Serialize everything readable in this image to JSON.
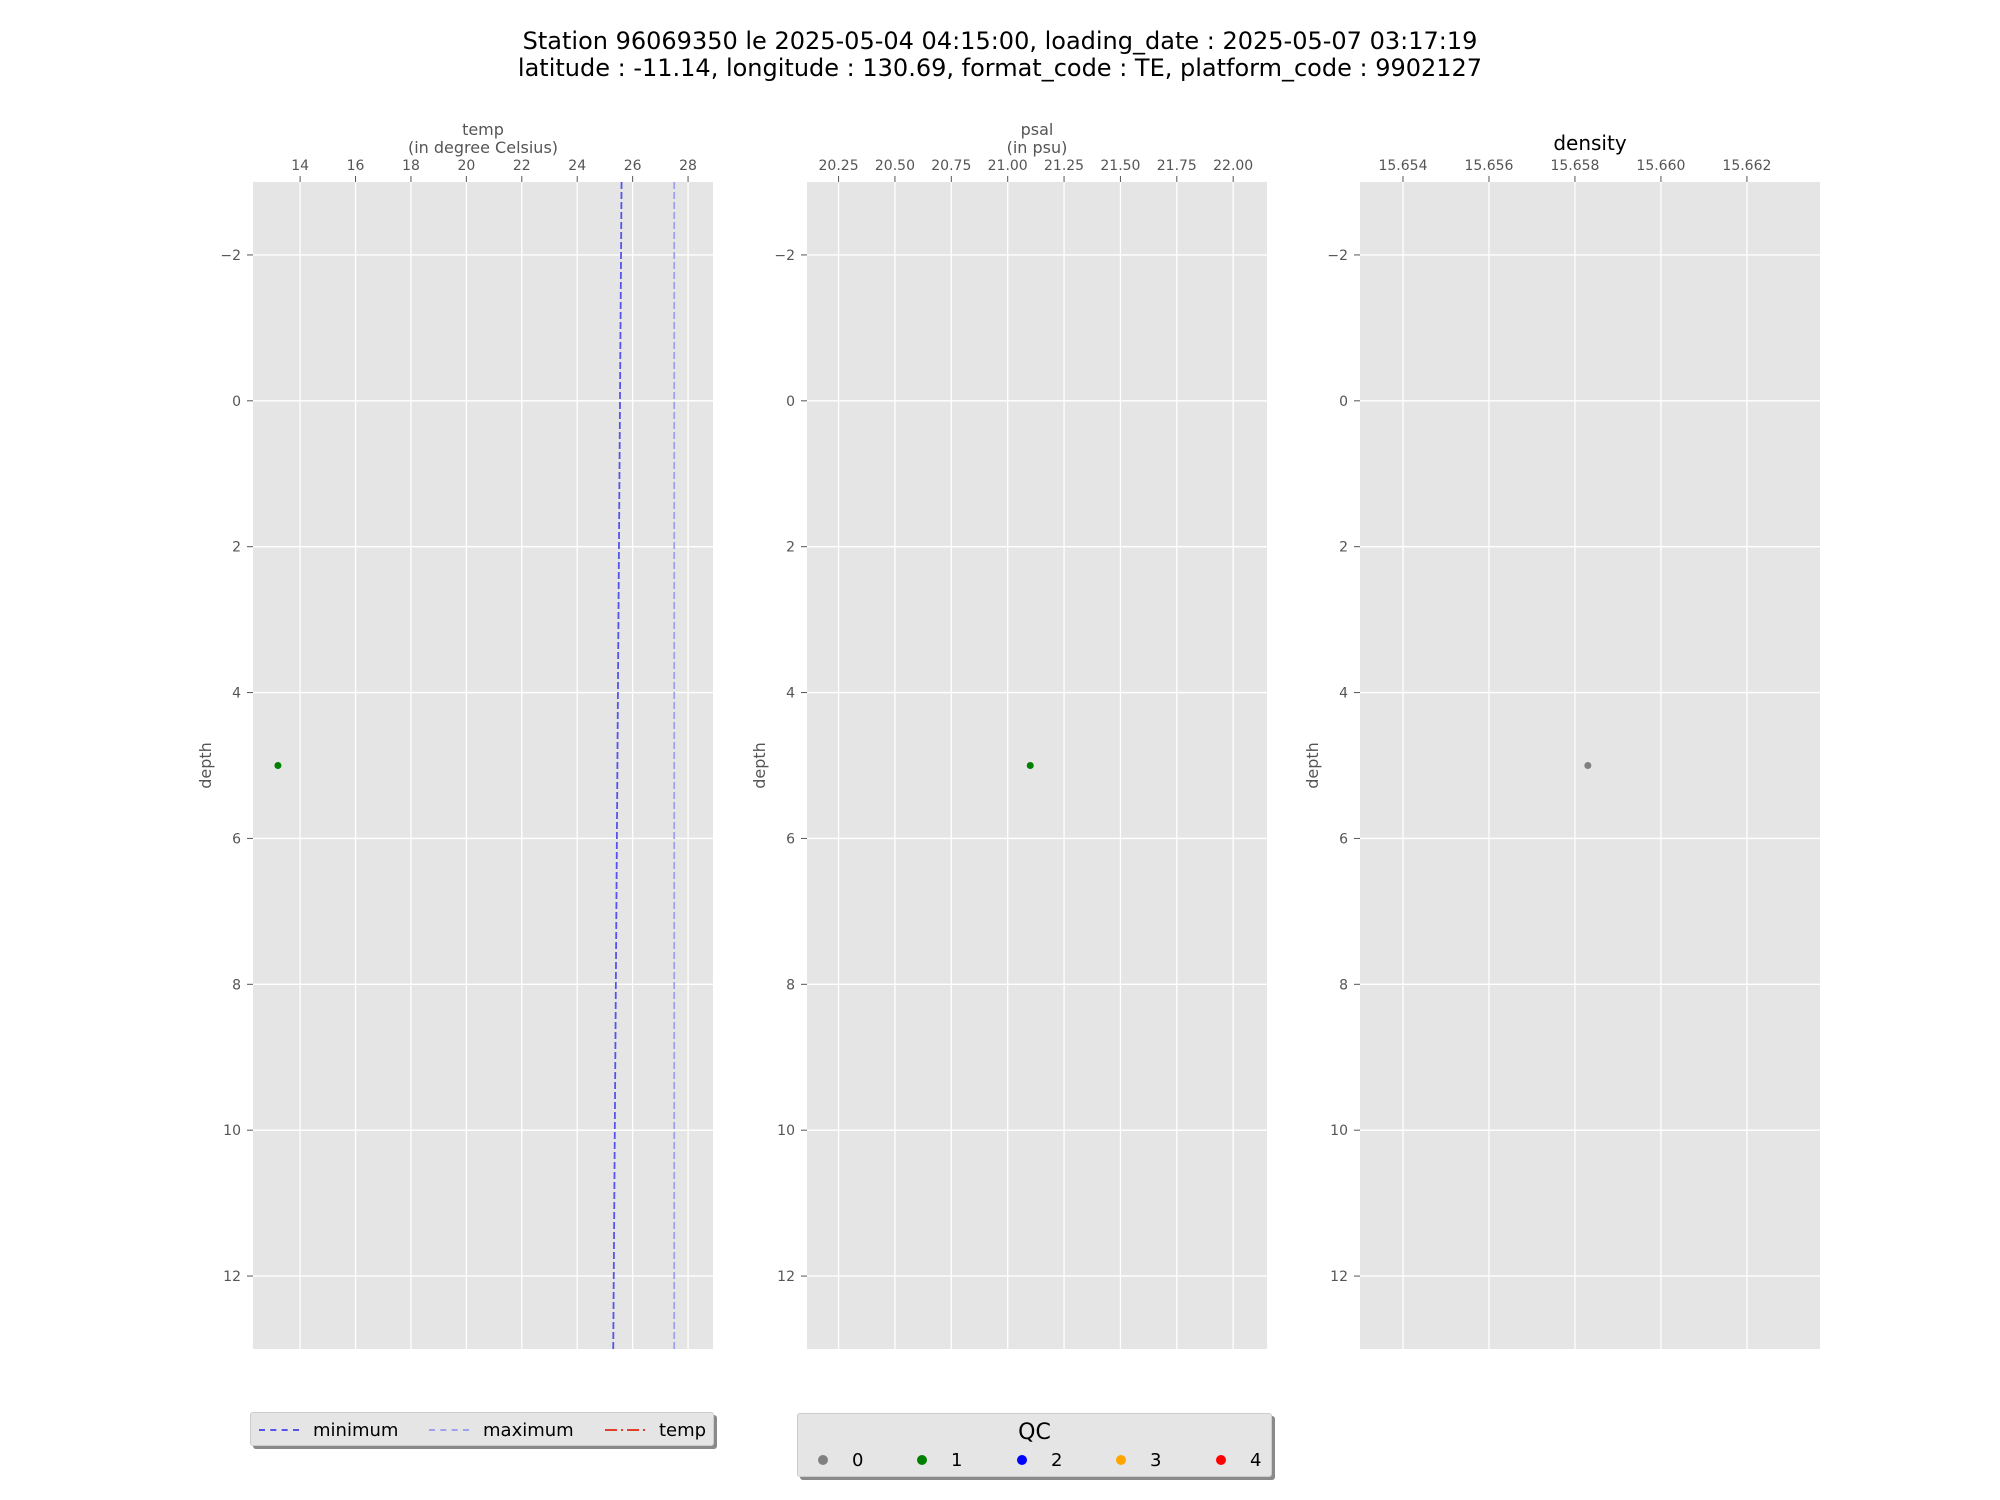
{
  "title": {
    "line1": "Station 96069350 le 2025-05-04 04:15:00, loading_date : 2025-05-07 03:17:19",
    "line2": "latitude : -11.14, longitude : 130.69, format_code : TE, platform_code : 9902127"
  },
  "chart_data": [
    {
      "type": "scatter",
      "panel": "temp",
      "xlabel": "temp\n(in degree Celsius)",
      "ylabel": "depth",
      "xlim": [
        12.3,
        28.9
      ],
      "ylim": [
        13,
        -3
      ],
      "y_inverted": true,
      "x_axis_position": "top",
      "grid": true,
      "xticks": [
        14,
        16,
        18,
        20,
        22,
        24,
        26,
        28
      ],
      "xtick_labels": [
        "14",
        "16",
        "18",
        "20",
        "22",
        "24",
        "26",
        "28"
      ],
      "yticks": [
        -2,
        0,
        2,
        4,
        6,
        8,
        10,
        12
      ],
      "ytick_labels": [
        "−2",
        "0",
        "2",
        "4",
        "6",
        "8",
        "10",
        "12"
      ],
      "points": [
        {
          "x": 13.2,
          "y": 5,
          "qc": 1
        }
      ],
      "lines": [
        {
          "name": "minimum",
          "style": "dashed",
          "color": "#5555ee",
          "points": [
            [
              25.6,
              -3
            ],
            [
              25.3,
              13
            ]
          ]
        },
        {
          "name": "maximum",
          "style": "dashed",
          "color": "#a0a0ee",
          "points": [
            [
              27.5,
              -3
            ],
            [
              27.5,
              13
            ]
          ]
        }
      ]
    },
    {
      "type": "scatter",
      "panel": "psal",
      "xlabel": "psal\n(in psu)",
      "ylabel": "depth",
      "xlim": [
        20.11,
        22.15
      ],
      "ylim": [
        13,
        -3
      ],
      "y_inverted": true,
      "x_axis_position": "top",
      "grid": true,
      "xticks": [
        20.25,
        20.5,
        20.75,
        21.0,
        21.25,
        21.5,
        21.75,
        22.0
      ],
      "xtick_labels": [
        "20.25",
        "20.50",
        "20.75",
        "21.00",
        "21.25",
        "21.50",
        "21.75",
        "22.00"
      ],
      "yticks": [
        -2,
        0,
        2,
        4,
        6,
        8,
        10,
        12
      ],
      "ytick_labels": [
        "−2",
        "0",
        "2",
        "4",
        "6",
        "8",
        "10",
        "12"
      ],
      "points": [
        {
          "x": 21.1,
          "y": 5,
          "qc": 1
        }
      ],
      "lines": []
    },
    {
      "type": "scatter",
      "panel": "density",
      "title": "density",
      "ylabel": "depth",
      "xlim": [
        15.653,
        15.6637
      ],
      "ylim": [
        13,
        -3
      ],
      "y_inverted": true,
      "x_axis_position": "top",
      "grid": true,
      "xticks": [
        15.654,
        15.656,
        15.658,
        15.66,
        15.662
      ],
      "xtick_labels": [
        "15.654",
        "15.656",
        "15.658",
        "15.660",
        "15.662"
      ],
      "yticks": [
        -2,
        0,
        2,
        4,
        6,
        8,
        10,
        12
      ],
      "ytick_labels": [
        "−2",
        "0",
        "2",
        "4",
        "6",
        "8",
        "10",
        "12"
      ],
      "points": [
        {
          "x": 15.6583,
          "y": 5,
          "qc": 0
        }
      ],
      "lines": []
    }
  ],
  "legend_lines": {
    "placement": "below-left",
    "items": [
      {
        "label": "minimum",
        "color": "#5555ee",
        "style": "dashed"
      },
      {
        "label": "maximum",
        "color": "#a0a0ee",
        "style": "dashed"
      },
      {
        "label": "temp",
        "color": "#e0402a",
        "style": "dashdot"
      }
    ]
  },
  "legend_qc": {
    "title": "QC",
    "placement": "below-center",
    "items": [
      {
        "label": "0",
        "color": "#808080"
      },
      {
        "label": "1",
        "color": "#008000"
      },
      {
        "label": "2",
        "color": "#0000ff"
      },
      {
        "label": "3",
        "color": "#ffa500"
      },
      {
        "label": "4",
        "color": "#ff0000"
      }
    ]
  }
}
